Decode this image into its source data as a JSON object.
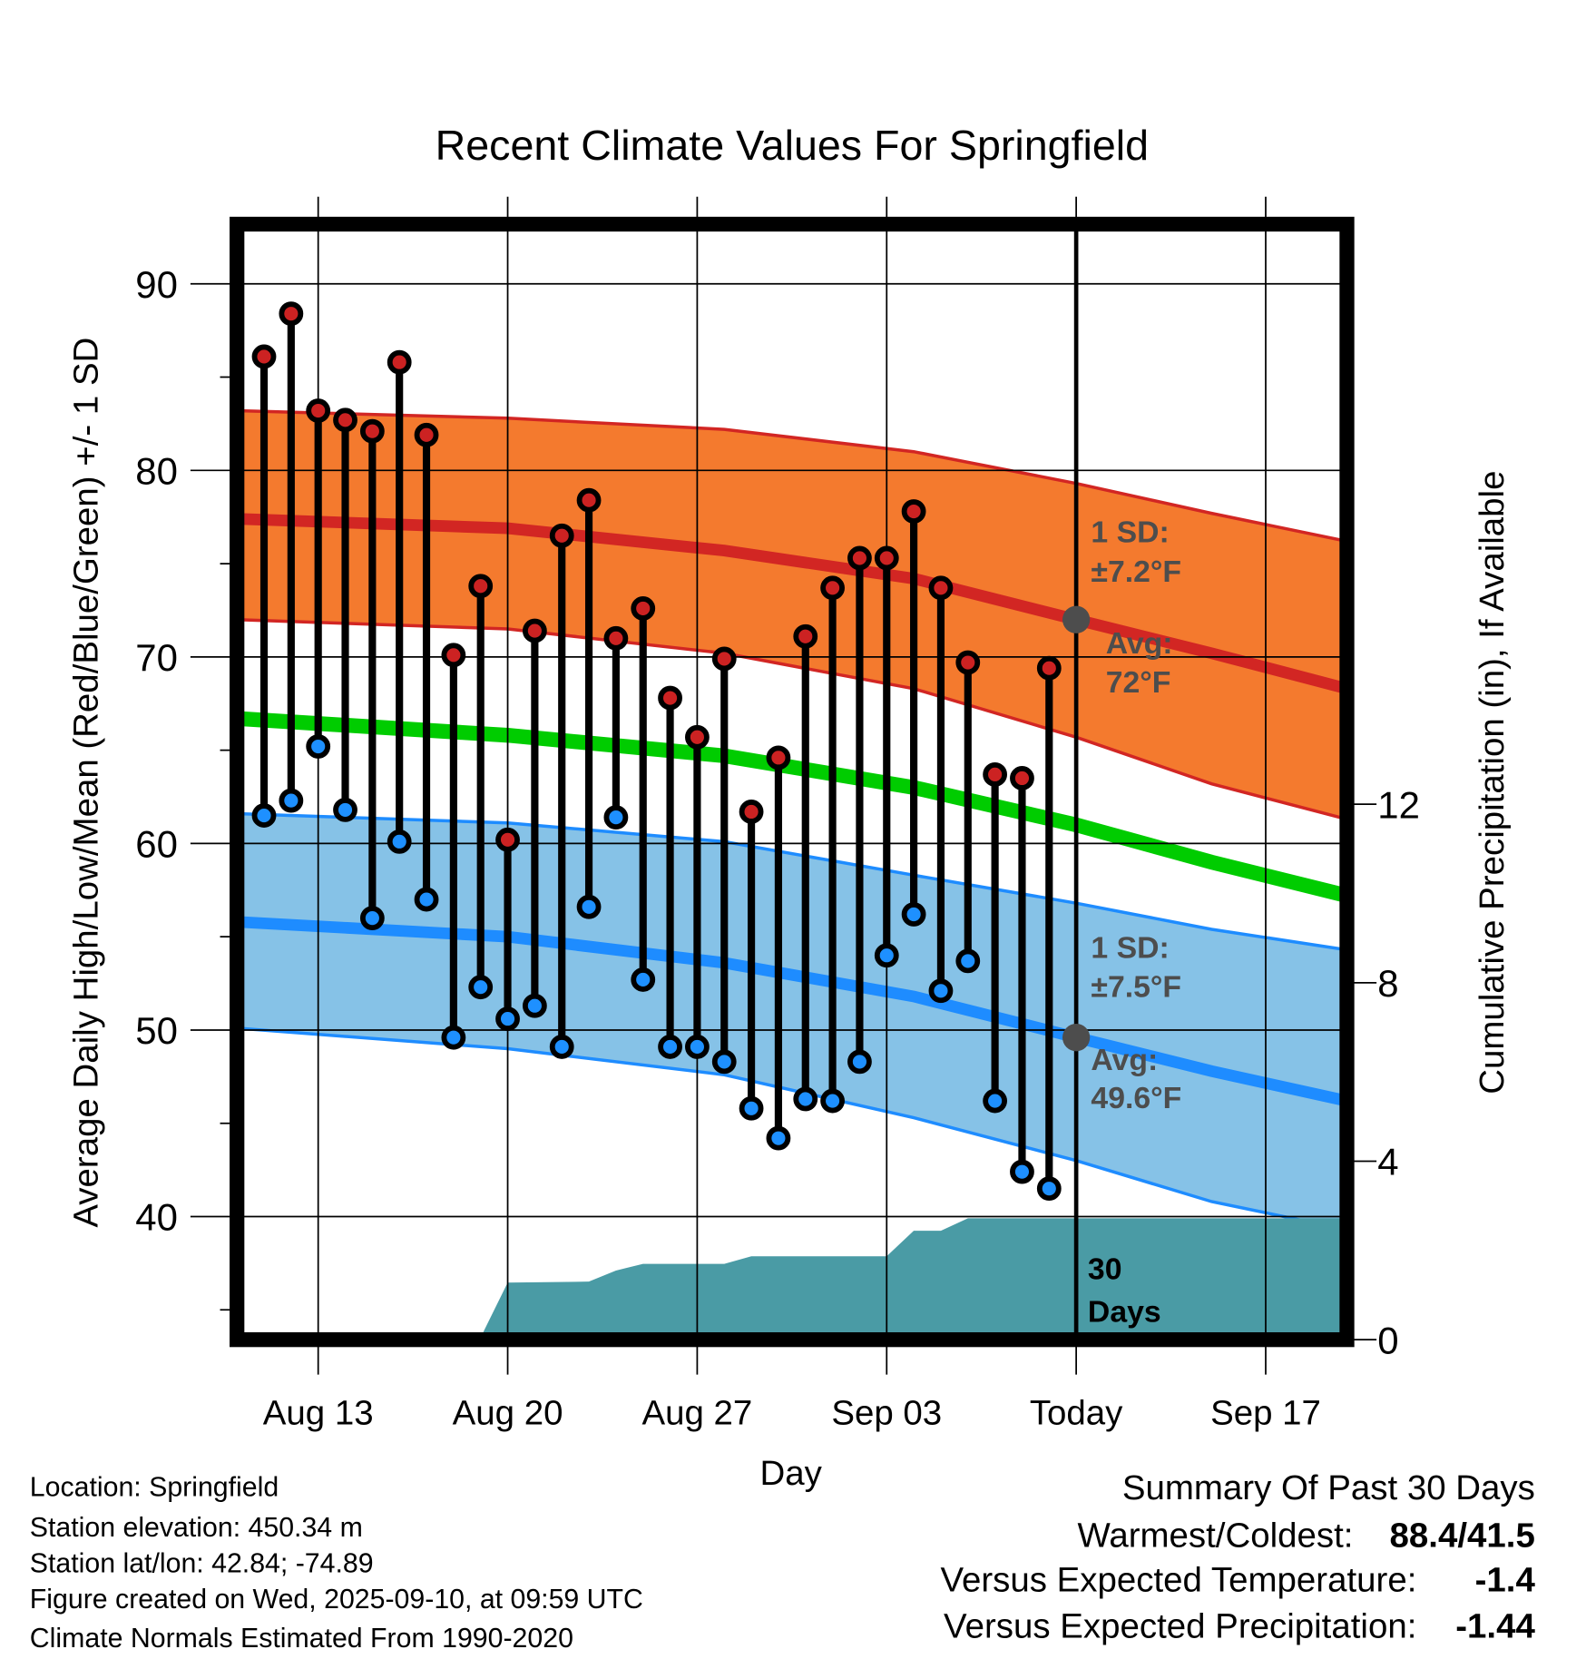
{
  "chart_data": {
    "type": "line",
    "title": "Recent Climate Values For Springfield",
    "xlabel": "Day",
    "ylabel": "Average Daily High/Low/Mean (Red/Blue/Green) +/- 1 SD",
    "y2label": "Cumulative Precipitation (in), If Available",
    "x_units": "days relative to Aug 13",
    "xlim": [
      -3,
      38
    ],
    "ylim": [
      33.4,
      93.2
    ],
    "y2lim": [
      0,
      25
    ],
    "grid": true,
    "x_ticks": [
      {
        "x": 0,
        "label": "Aug 13"
      },
      {
        "x": 7,
        "label": "Aug 20"
      },
      {
        "x": 14,
        "label": "Aug 27"
      },
      {
        "x": 21,
        "label": "Sep 03"
      },
      {
        "x": 28,
        "label": "Today"
      },
      {
        "x": 35,
        "label": "Sep 17"
      }
    ],
    "y_ticks": [
      40,
      50,
      60,
      70,
      80,
      90
    ],
    "y_minor_ticks": [
      35,
      45,
      55,
      65,
      75,
      85
    ],
    "y2_ticks": [
      0,
      4,
      8,
      12
    ],
    "today_x": 28,
    "daily": {
      "x": [
        -2,
        -1,
        0,
        1,
        2,
        3,
        4,
        5,
        6,
        7,
        8,
        9,
        10,
        11,
        12,
        13,
        14,
        15,
        16,
        17,
        18,
        19,
        20,
        21,
        22,
        23,
        24,
        25,
        26,
        27
      ],
      "high": [
        86.1,
        88.4,
        83.2,
        82.7,
        82.1,
        85.8,
        81.9,
        70.1,
        73.8,
        60.2,
        71.4,
        76.5,
        78.4,
        71.0,
        72.6,
        67.8,
        65.7,
        69.9,
        61.7,
        64.6,
        71.1,
        73.7,
        75.3,
        75.3,
        77.8,
        73.7,
        69.7,
        63.7,
        63.5,
        69.4
      ],
      "low": [
        61.5,
        62.3,
        65.2,
        61.8,
        56.0,
        60.1,
        57.0,
        49.6,
        52.3,
        50.6,
        51.3,
        49.1,
        56.6,
        61.4,
        52.7,
        49.1,
        49.1,
        48.3,
        45.8,
        44.2,
        46.3,
        46.2,
        48.3,
        54.0,
        56.2,
        52.1,
        53.7,
        46.2,
        42.4,
        41.5
      ]
    },
    "normals": {
      "x": [
        -3,
        7,
        15,
        22,
        28,
        33,
        38
      ],
      "high_mean": [
        77.4,
        76.9,
        75.7,
        74.2,
        72.0,
        70.2,
        68.3
      ],
      "high_upper": [
        83.2,
        82.8,
        82.2,
        81.0,
        79.3,
        77.7,
        76.2
      ],
      "high_lower": [
        72.0,
        71.5,
        70.2,
        68.3,
        65.7,
        63.2,
        61.3
      ],
      "low_mean": [
        55.8,
        55.0,
        53.6,
        51.8,
        49.6,
        47.8,
        46.2
      ],
      "low_upper": [
        61.6,
        61.1,
        60.1,
        58.3,
        56.8,
        55.4,
        54.3
      ],
      "low_lower": [
        50.1,
        49.0,
        47.6,
        45.3,
        43.0,
        40.8,
        39.3
      ],
      "mean": [
        66.7,
        65.8,
        64.7,
        63.0,
        61.0,
        59.0,
        57.2
      ]
    },
    "precip": {
      "x": [
        -3,
        3.5,
        6,
        7,
        10,
        11,
        12,
        15,
        16,
        21,
        22,
        23,
        24,
        38
      ],
      "cumulative": [
        0,
        0.02,
        0.05,
        1.28,
        1.3,
        1.55,
        1.7,
        1.7,
        1.87,
        1.87,
        2.44,
        2.44,
        2.72,
        2.72
      ]
    },
    "annotations": {
      "high_sd_label": "1 SD:",
      "high_sd_value": "±7.2°F",
      "high_avg_label": "Avg:",
      "high_avg_value": "72°F",
      "high_avg": 72.0,
      "low_sd_label": "1 SD:",
      "low_sd_value": "±7.5°F",
      "low_avg_label": "Avg:",
      "low_avg_value": "49.6°F",
      "low_avg": 49.6,
      "precip_label_1": "30",
      "precip_label_2": "Days"
    },
    "colors": {
      "high_band": "#f47a2e",
      "high_line": "#d22623",
      "low_band": "#86c2e7",
      "low_line": "#1e8cff",
      "mean_line": "#00cc00",
      "precip": "#4a9ba5",
      "high_dot": "#cc2222",
      "low_dot": "#1e90ff",
      "annotation_dot": "#4d4d4d"
    }
  },
  "footer": {
    "location": "Location: Springfield",
    "elevation": "Station elevation: 450.34 m",
    "latlon": "Station lat/lon: 42.84; -74.89",
    "created": "Figure created on Wed, 2025-09-10, at 09:59 UTC",
    "normals": "Climate Normals Estimated From 1990-2020"
  },
  "summary": {
    "title": "Summary Of Past 30 Days",
    "warmest_label": "Warmest/Coldest:",
    "warmest_value": "88.4/41.5",
    "temp_label": "Versus Expected Temperature:",
    "temp_value": "-1.4",
    "temp_color": "#1e90ff",
    "precip_label": "Versus Expected Precipitation:",
    "precip_value": "-1.44",
    "precip_color": "#a0522d"
  }
}
